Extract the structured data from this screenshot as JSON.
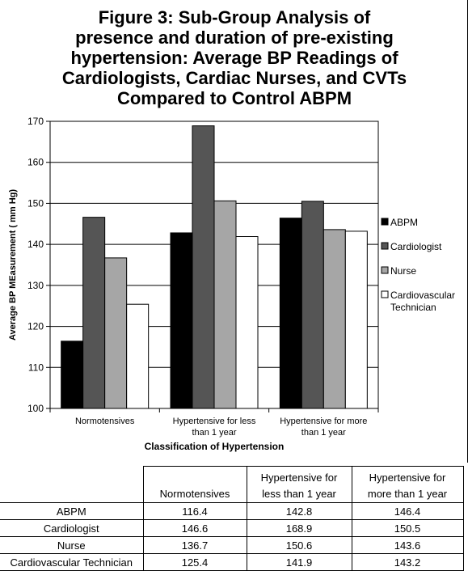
{
  "chart_data": {
    "type": "bar",
    "title_lines": [
      "Figure 3: Sub-Group Analysis of",
      "presence and duration of pre-existing",
      "hypertension: Average BP Readings of",
      "Cardiologists, Cardiac Nurses, and CVTs",
      "Compared to Control ABPM"
    ],
    "xlabel": "Classification  of Hypertension",
    "ylabel": "Average BP MEasurement ( mm Hg)",
    "ylim": [
      100,
      170
    ],
    "yticks": [
      100,
      110,
      120,
      130,
      140,
      150,
      160,
      170
    ],
    "grid": true,
    "legend_position": "right",
    "categories": [
      [
        "Normotensives"
      ],
      [
        "Hypertensive for less",
        "than 1 year"
      ],
      [
        "Hypertensive for more",
        "than 1 year"
      ]
    ],
    "series": [
      {
        "name": "ABPM",
        "legend": [
          "ABPM"
        ],
        "color": "#000000",
        "values": [
          116.4,
          142.8,
          146.4
        ]
      },
      {
        "name": "Cardiologist",
        "legend": [
          "Cardiologist"
        ],
        "color": "#555555",
        "values": [
          146.6,
          168.9,
          150.5
        ]
      },
      {
        "name": "Nurse",
        "legend": [
          "Nurse"
        ],
        "color": "#a6a6a6",
        "values": [
          136.7,
          150.6,
          143.6
        ]
      },
      {
        "name": "Cardiovascular Technician",
        "legend": [
          "Cardiovascular",
          "Technician"
        ],
        "color": "#ffffff",
        "values": [
          125.4,
          141.9,
          143.2
        ]
      }
    ]
  },
  "table": {
    "headers": [
      [],
      [
        "Normotensives"
      ],
      [
        "Hypertensive for",
        "less than 1 year"
      ],
      [
        "Hypertensive for",
        "more than 1 year"
      ]
    ],
    "rows": [
      [
        "ABPM",
        "116.4",
        "142.8",
        "146.4"
      ],
      [
        "Cardiologist",
        "146.6",
        "168.9",
        "150.5"
      ],
      [
        "Nurse",
        "136.7",
        "150.6",
        "143.6"
      ],
      [
        "Cardiovascular Technician",
        "125.4",
        "141.9",
        "143.2"
      ]
    ]
  }
}
